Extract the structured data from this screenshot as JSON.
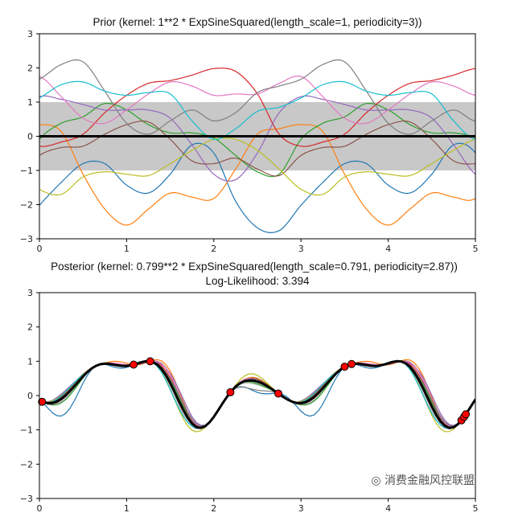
{
  "chart_data": [
    {
      "type": "line",
      "title": "Prior (kernel:  1**2 * ExpSineSquared(length_scale=1, periodicity=3))",
      "xlim": [
        0,
        5
      ],
      "ylim": [
        -3,
        3
      ],
      "xticks": [
        "0",
        "1",
        "2",
        "3",
        "4",
        "5"
      ],
      "yticks": [
        "3",
        "2",
        "1",
        "0",
        "−1",
        "−2",
        "−3"
      ],
      "grid": false,
      "mean": 0,
      "std_band": [
        -1,
        1
      ],
      "band_color": "#c8c8c8",
      "mean_color": "#000000",
      "period": 3,
      "sample_x": [
        0,
        0.25,
        0.5,
        0.75,
        1,
        1.25,
        1.5,
        1.75,
        2,
        2.25,
        2.5,
        2.75,
        3
      ],
      "samples": [
        {
          "color": "#1f77b4",
          "values": [
            -2.02,
            -1.35,
            -0.8,
            -0.8,
            -1.43,
            -1.66,
            -1.11,
            -0.25,
            -0.49,
            -1.9,
            -2.68,
            -2.76,
            -2.02
          ]
        },
        {
          "color": "#ff7f0e",
          "values": [
            0.34,
            0.14,
            -1.11,
            -2.13,
            -2.6,
            -2.13,
            -1.66,
            -1.78,
            -1.82,
            -0.96,
            0.06,
            0.22,
            0.34
          ]
        },
        {
          "color": "#2ca02c",
          "values": [
            -0.09,
            0.38,
            0.57,
            0.96,
            0.77,
            0.34,
            0.1,
            0.1,
            -0.05,
            -0.56,
            -1.04,
            -1.11,
            -0.09
          ]
        },
        {
          "color": "#d62728",
          "values": [
            -0.29,
            -0.17,
            0.06,
            0.69,
            1.2,
            1.55,
            1.63,
            1.79,
            1.98,
            1.9,
            1.24,
            0.06,
            -0.29
          ]
        },
        {
          "color": "#9467bd",
          "values": [
            1.16,
            1.08,
            0.93,
            0.77,
            0.77,
            0.77,
            0.53,
            -0.25,
            -1.11,
            -1.27,
            -0.49,
            0.69,
            1.16
          ]
        },
        {
          "color": "#8c564b",
          "values": [
            -0.56,
            -0.33,
            -0.29,
            0.06,
            0.34,
            0.42,
            -0.09,
            -0.72,
            -0.8,
            -0.64,
            -0.96,
            -1.15,
            -0.56
          ]
        },
        {
          "color": "#e377c2",
          "values": [
            1.75,
            1.16,
            0.53,
            0.38,
            0.77,
            1.24,
            1.59,
            1.47,
            1.2,
            1.24,
            1.24,
            1.55,
            1.75
          ]
        },
        {
          "color": "#7f7f7f",
          "values": [
            1.67,
            2.1,
            2.18,
            1.32,
            0.38,
            0.06,
            0.45,
            0.77,
            0.45,
            0.69,
            1.28,
            1.47,
            1.67
          ]
        },
        {
          "color": "#bcbd22",
          "values": [
            -1.55,
            -1.7,
            -1.19,
            -1.04,
            -1.11,
            -1.15,
            -0.8,
            -0.41,
            -0.09,
            -0.09,
            -0.41,
            -0.96,
            -1.55
          ]
        },
        {
          "color": "#17becf",
          "values": [
            1.12,
            1.51,
            1.59,
            1.32,
            1.2,
            1.28,
            1.24,
            0.45,
            -0.09,
            0.22,
            0.73,
            0.85,
            1.12
          ]
        }
      ]
    },
    {
      "type": "line",
      "title": "Posterior (kernel: 0.799**2 * ExpSineSquared(length_scale=0.791, periodicity=2.87))",
      "subtitle": "Log-Likelihood: 3.394",
      "xlim": [
        0,
        5
      ],
      "ylim": [
        -3,
        3
      ],
      "xticks": [
        "0",
        "1",
        "2",
        "3",
        "4",
        "5"
      ],
      "yticks": [
        "3",
        "2",
        "1",
        "0",
        "−1",
        "−2",
        "−3"
      ],
      "grid": false,
      "kernel": {
        "amplitude": 0.799,
        "length_scale": 0.791,
        "periodicity": 2.87
      },
      "mean_color": "#000000",
      "point_color": "#ff0000",
      "sample_colors": [
        "#1f77b4",
        "#ff7f0e",
        "#2ca02c",
        "#d62728",
        "#9467bd",
        "#8c564b",
        "#e377c2",
        "#7f7f7f",
        "#bcbd22",
        "#17becf"
      ],
      "points": {
        "x": [
          0.03,
          1.08,
          1.27,
          2.19,
          2.74,
          3.5,
          3.58,
          4.84,
          4.87,
          4.89
        ],
        "y": [
          -0.181,
          0.902,
          0.998,
          0.096,
          0.058,
          0.841,
          0.919,
          -0.722,
          -0.622,
          -0.545
        ]
      }
    }
  ],
  "watermark": "消费金融风控联盟"
}
